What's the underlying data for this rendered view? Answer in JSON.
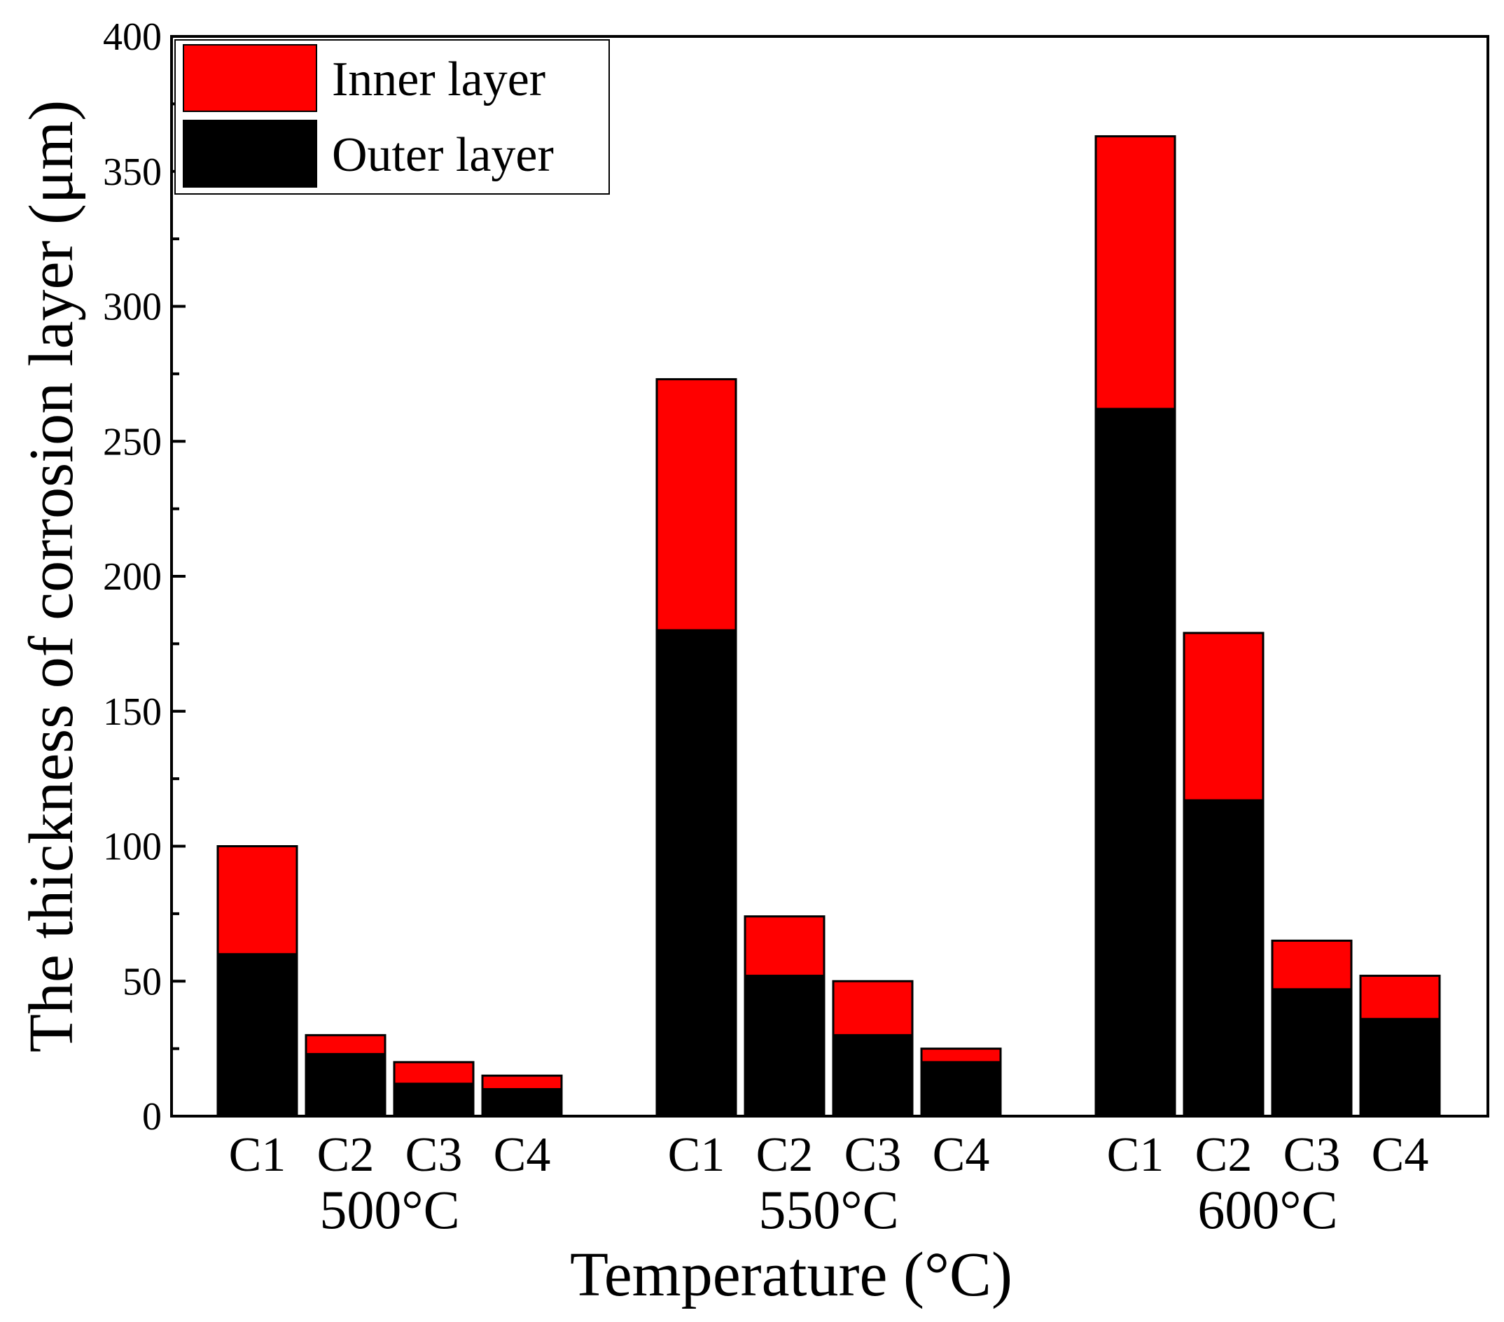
{
  "chart_data": {
    "type": "bar",
    "stacked": true,
    "xlabel": "Temperature (°C)",
    "ylabel": "The thickness of corrosion layer (μm)",
    "ylim": [
      0,
      400
    ],
    "yticks": [
      "0",
      "50",
      "100",
      "150",
      "200",
      "250",
      "300",
      "350",
      "400"
    ],
    "groups": [
      "500°C",
      "550°C",
      "600°C"
    ],
    "categories": [
      "C1",
      "C2",
      "C3",
      "C4"
    ],
    "legend_position": "top-left",
    "series": [
      {
        "name": "Outer layer",
        "color": "#000000",
        "values": [
          [
            60,
            23,
            12,
            10
          ],
          [
            180,
            52,
            30,
            20
          ],
          [
            262,
            117,
            47,
            36
          ]
        ]
      },
      {
        "name": "Inner layer",
        "color": "#ff0000",
        "values": [
          [
            40,
            7,
            8,
            5
          ],
          [
            93,
            22,
            20,
            5
          ],
          [
            101,
            62,
            18,
            16
          ]
        ]
      }
    ],
    "legend": [
      "Inner layer",
      "Outer layer"
    ]
  }
}
